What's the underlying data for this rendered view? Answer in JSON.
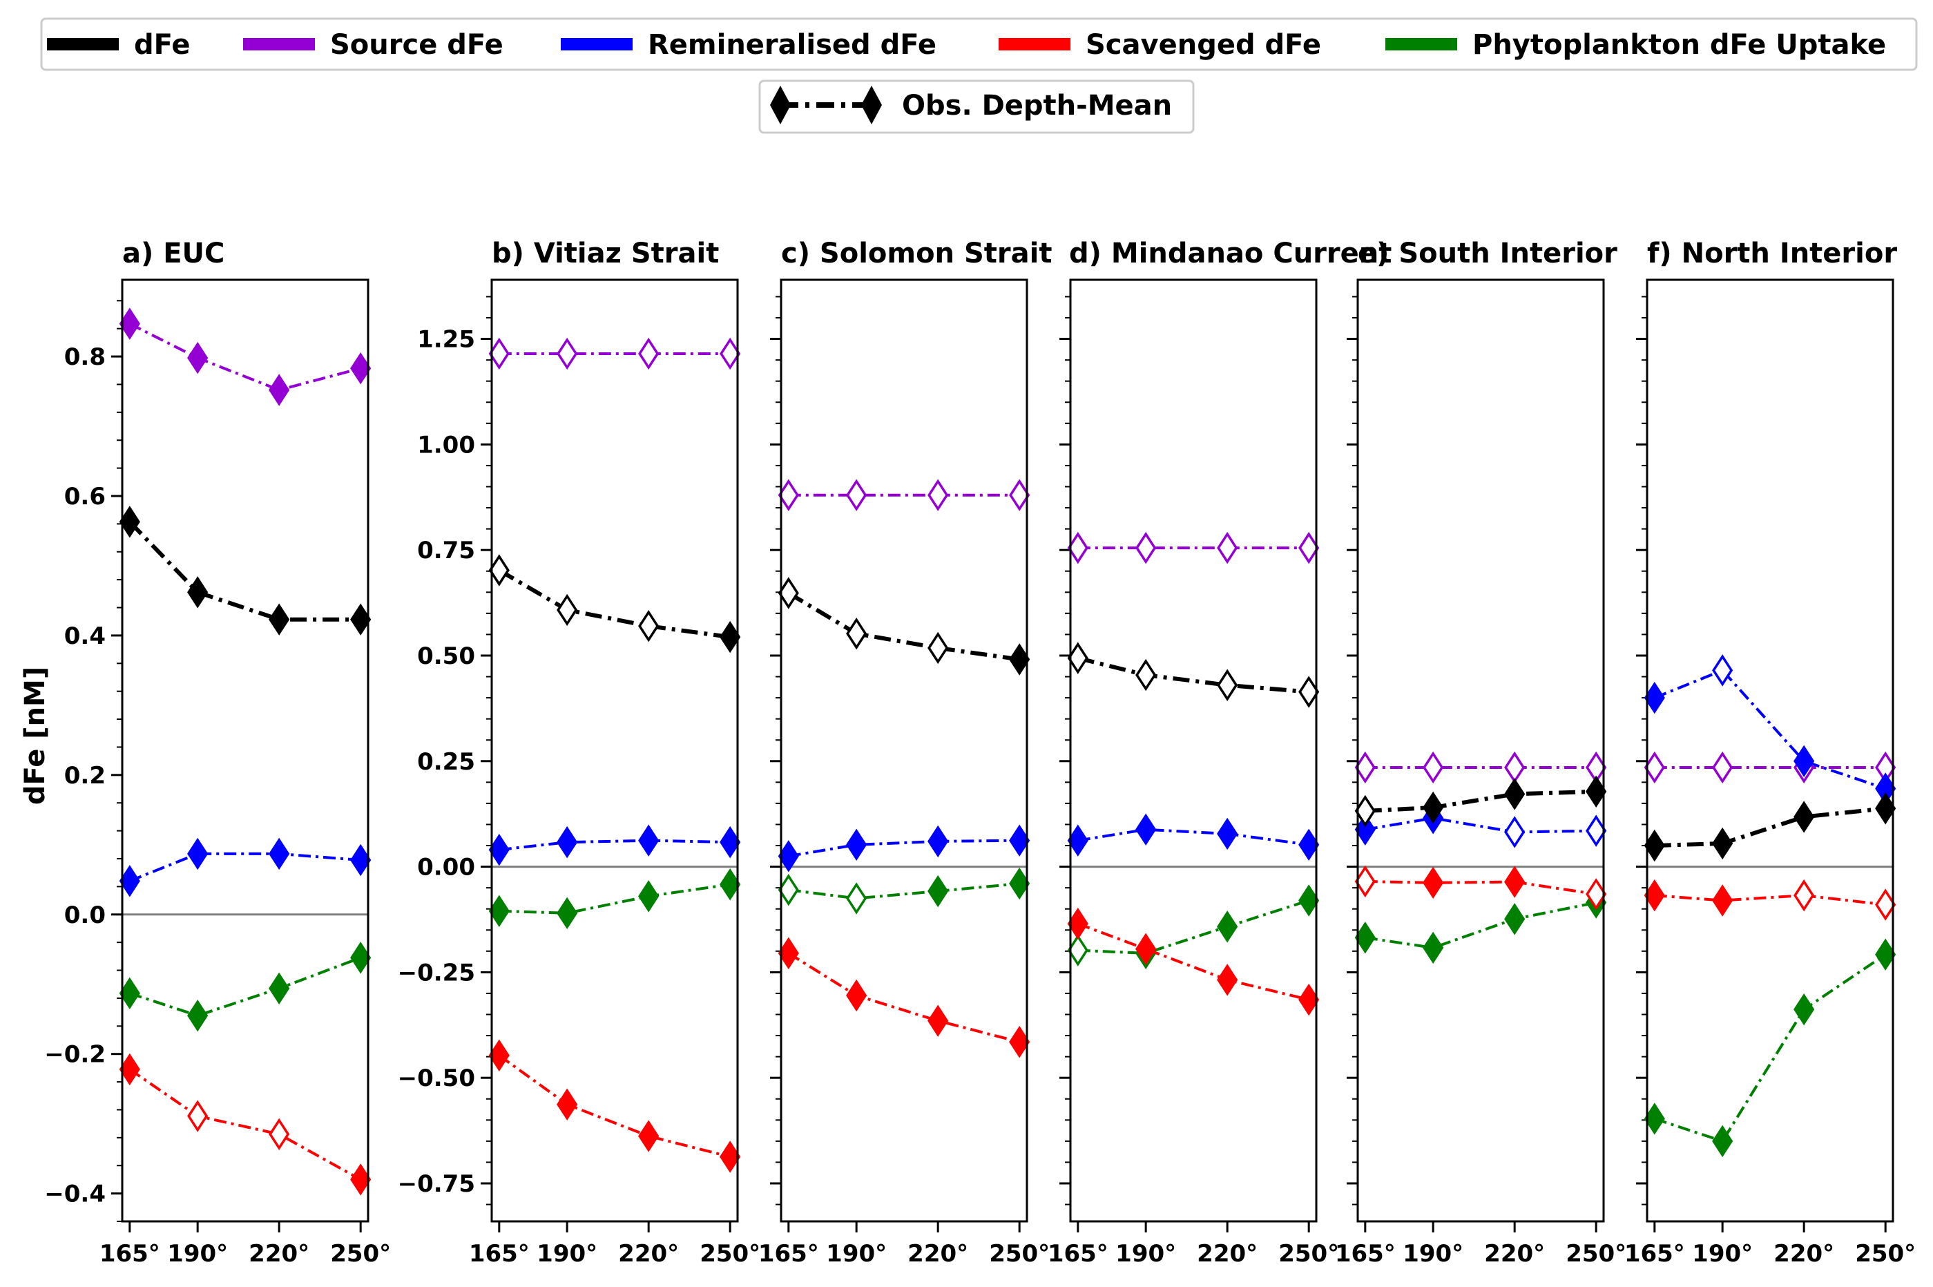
{
  "chart_data": {
    "type": "line",
    "ylabel": "dFe [nM]",
    "x": [
      165,
      190,
      220,
      250
    ],
    "x_tick_labels": [
      "165°",
      "190°",
      "220°",
      "250°"
    ],
    "legend": [
      {
        "name": "dFe",
        "color": "#000000"
      },
      {
        "name": "Source dFe",
        "color": "#9400d3"
      },
      {
        "name": "Remineralised dFe",
        "color": "#0000ff"
      },
      {
        "name": "Scavenged dFe",
        "color": "#ff0000"
      },
      {
        "name": "Phytoplankton dFe Uptake",
        "color": "#008000"
      }
    ],
    "marker_legend": "Obs. Depth-Mean",
    "panels": [
      {
        "title": "a) EUC",
        "ylim": [
          -0.44,
          0.91
        ],
        "yticks": [
          -0.4,
          -0.2,
          0.0,
          0.2,
          0.4,
          0.6,
          0.8
        ],
        "ytick_labels": [
          "−0.4",
          "−0.2",
          "0.0",
          "0.2",
          "0.4",
          "0.6",
          "0.8"
        ],
        "series": [
          {
            "name": "Source dFe",
            "values": [
              0.847,
              0.798,
              0.752,
              0.783
            ],
            "filled": [
              true,
              true,
              true,
              true
            ]
          },
          {
            "name": "dFe",
            "values": [
              0.563,
              0.462,
              0.423,
              0.423
            ],
            "filled": [
              true,
              true,
              true,
              true
            ]
          },
          {
            "name": "Remineralised dFe",
            "values": [
              0.048,
              0.087,
              0.087,
              0.078
            ],
            "filled": [
              true,
              true,
              true,
              true
            ]
          },
          {
            "name": "Phytoplankton dFe Uptake",
            "values": [
              -0.113,
              -0.145,
              -0.106,
              -0.062
            ],
            "filled": [
              true,
              true,
              true,
              true
            ]
          },
          {
            "name": "Scavenged dFe",
            "values": [
              -0.222,
              -0.289,
              -0.315,
              -0.38
            ],
            "filled": [
              true,
              false,
              false,
              true
            ]
          }
        ]
      },
      {
        "title": "b) Vitiaz Strait",
        "ylim": [
          -0.84,
          1.39
        ],
        "yticks": [
          -0.75,
          -0.5,
          -0.25,
          0.0,
          0.25,
          0.5,
          0.75,
          1.0,
          1.25
        ],
        "ytick_labels": [
          "−0.75",
          "−0.50",
          "−0.25",
          "0.00",
          "0.25",
          "0.50",
          "0.75",
          "1.00",
          "1.25"
        ],
        "series": [
          {
            "name": "Source dFe",
            "values": [
              1.215,
              1.215,
              1.215,
              1.215
            ],
            "filled": [
              false,
              false,
              false,
              false
            ]
          },
          {
            "name": "dFe",
            "values": [
              0.702,
              0.608,
              0.57,
              0.544
            ],
            "filled": [
              false,
              false,
              false,
              true
            ]
          },
          {
            "name": "Remineralised dFe",
            "values": [
              0.04,
              0.058,
              0.062,
              0.058
            ],
            "filled": [
              true,
              true,
              true,
              true
            ]
          },
          {
            "name": "Phytoplankton dFe Uptake",
            "values": [
              -0.105,
              -0.11,
              -0.07,
              -0.042
            ],
            "filled": [
              true,
              true,
              true,
              true
            ]
          },
          {
            "name": "Scavenged dFe",
            "values": [
              -0.447,
              -0.563,
              -0.638,
              -0.687
            ],
            "filled": [
              true,
              true,
              true,
              true
            ]
          }
        ]
      },
      {
        "title": "c) Solomon Strait",
        "ylim": [
          -0.84,
          1.39
        ],
        "yticks": [
          -0.75,
          -0.5,
          -0.25,
          0.0,
          0.25,
          0.5,
          0.75,
          1.0,
          1.25
        ],
        "ytick_labels": [
          "",
          "",
          "",
          "",
          "",
          "",
          "",
          "",
          ""
        ],
        "series": [
          {
            "name": "Source dFe",
            "values": [
              0.88,
              0.88,
              0.88,
              0.88
            ],
            "filled": [
              false,
              false,
              false,
              false
            ]
          },
          {
            "name": "dFe",
            "values": [
              0.648,
              0.552,
              0.518,
              0.491
            ],
            "filled": [
              false,
              false,
              false,
              true
            ]
          },
          {
            "name": "Remineralised dFe",
            "values": [
              0.025,
              0.052,
              0.06,
              0.062
            ],
            "filled": [
              true,
              true,
              true,
              true
            ]
          },
          {
            "name": "Phytoplankton dFe Uptake",
            "values": [
              -0.055,
              -0.075,
              -0.058,
              -0.04
            ],
            "filled": [
              false,
              false,
              true,
              true
            ]
          },
          {
            "name": "Scavenged dFe",
            "values": [
              -0.205,
              -0.305,
              -0.365,
              -0.415
            ],
            "filled": [
              true,
              true,
              true,
              true
            ]
          }
        ]
      },
      {
        "title": "d) Mindanao Current",
        "ylim": [
          -0.84,
          1.39
        ],
        "yticks": [
          -0.75,
          -0.5,
          -0.25,
          0.0,
          0.25,
          0.5,
          0.75,
          1.0,
          1.25
        ],
        "ytick_labels": [
          "",
          "",
          "",
          "",
          "",
          "",
          "",
          "",
          ""
        ],
        "series": [
          {
            "name": "Source dFe",
            "values": [
              0.755,
              0.755,
              0.755,
              0.755
            ],
            "filled": [
              false,
              false,
              false,
              false
            ]
          },
          {
            "name": "dFe",
            "values": [
              0.494,
              0.454,
              0.43,
              0.414
            ],
            "filled": [
              false,
              false,
              false,
              false
            ]
          },
          {
            "name": "Remineralised dFe",
            "values": [
              0.062,
              0.088,
              0.078,
              0.052
            ],
            "filled": [
              true,
              true,
              true,
              true
            ]
          },
          {
            "name": "Phytoplankton dFe Uptake",
            "values": [
              -0.198,
              -0.205,
              -0.142,
              -0.08
            ],
            "filled": [
              false,
              false,
              true,
              true
            ]
          },
          {
            "name": "Scavenged dFe",
            "values": [
              -0.135,
              -0.195,
              -0.268,
              -0.315
            ],
            "filled": [
              true,
              true,
              true,
              true
            ]
          }
        ]
      },
      {
        "title": "e) South Interior",
        "ylim": [
          -0.84,
          1.39
        ],
        "yticks": [
          -0.75,
          -0.5,
          -0.25,
          0.0,
          0.25,
          0.5,
          0.75,
          1.0,
          1.25
        ],
        "ytick_labels": [
          "",
          "",
          "",
          "",
          "",
          "",
          "",
          "",
          ""
        ],
        "series": [
          {
            "name": "Source dFe",
            "values": [
              0.235,
              0.235,
              0.235,
              0.235
            ],
            "filled": [
              false,
              false,
              false,
              false
            ]
          },
          {
            "name": "dFe",
            "values": [
              0.132,
              0.14,
              0.172,
              0.178
            ],
            "filled": [
              false,
              true,
              true,
              true
            ]
          },
          {
            "name": "Remineralised dFe",
            "values": [
              0.088,
              0.115,
              0.082,
              0.085
            ],
            "filled": [
              true,
              true,
              false,
              false
            ]
          },
          {
            "name": "Phytoplankton dFe Uptake",
            "values": [
              -0.168,
              -0.192,
              -0.124,
              -0.085
            ],
            "filled": [
              true,
              true,
              true,
              true
            ]
          },
          {
            "name": "Scavenged dFe",
            "values": [
              -0.035,
              -0.038,
              -0.036,
              -0.065
            ],
            "filled": [
              false,
              true,
              true,
              false
            ]
          }
        ]
      },
      {
        "title": "f) North Interior",
        "ylim": [
          -0.84,
          1.39
        ],
        "yticks": [
          -0.75,
          -0.5,
          -0.25,
          0.0,
          0.25,
          0.5,
          0.75,
          1.0,
          1.25
        ],
        "ytick_labels": [
          "",
          "",
          "",
          "",
          "",
          "",
          "",
          "",
          ""
        ],
        "series": [
          {
            "name": "Source dFe",
            "values": [
              0.235,
              0.235,
              0.235,
              0.235
            ],
            "filled": [
              false,
              false,
              false,
              false
            ]
          },
          {
            "name": "dFe",
            "values": [
              0.05,
              0.055,
              0.118,
              0.138
            ],
            "filled": [
              true,
              true,
              true,
              true
            ]
          },
          {
            "name": "Remineralised dFe",
            "values": [
              0.4,
              0.465,
              0.25,
              0.185
            ],
            "filled": [
              true,
              false,
              true,
              true
            ]
          },
          {
            "name": "Phytoplankton dFe Uptake",
            "values": [
              -0.597,
              -0.65,
              -0.338,
              -0.208
            ],
            "filled": [
              true,
              true,
              true,
              true
            ]
          },
          {
            "name": "Scavenged dFe",
            "values": [
              -0.068,
              -0.08,
              -0.068,
              -0.09
            ],
            "filled": [
              true,
              true,
              false,
              false
            ]
          }
        ]
      }
    ]
  }
}
